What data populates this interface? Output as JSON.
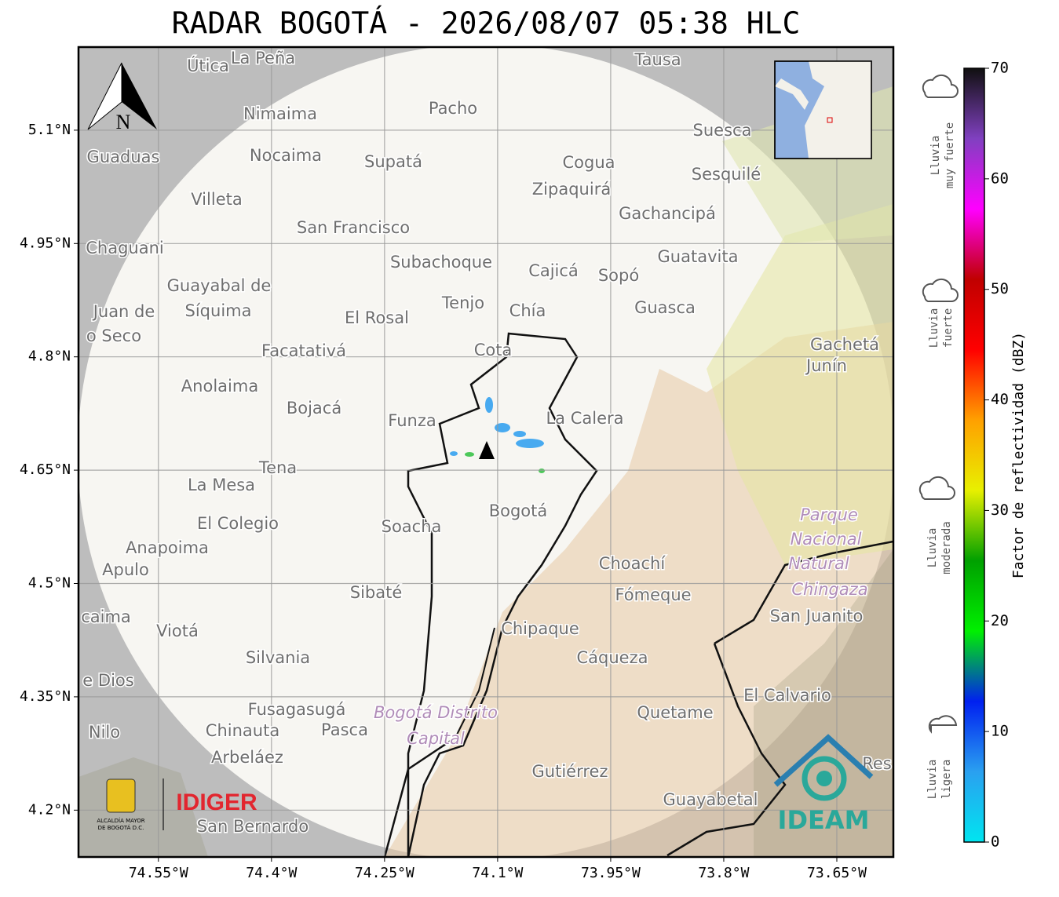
{
  "title": "RADAR BOGOTÁ - 2026/08/07 05:38 HLC",
  "north": "N",
  "map": {
    "xlim": [
      -74.656,
      -73.575
    ],
    "ylim": [
      4.138,
      5.21
    ],
    "xticks": [
      {
        "value": -74.55,
        "label": "74.55°W"
      },
      {
        "value": -74.4,
        "label": "74.4°W"
      },
      {
        "value": -74.25,
        "label": "74.25°W"
      },
      {
        "value": -74.1,
        "label": "74.1°W"
      },
      {
        "value": -73.95,
        "label": "73.95°W"
      },
      {
        "value": -73.8,
        "label": "73.8°W"
      },
      {
        "value": -73.65,
        "label": "73.65°W"
      }
    ],
    "yticks": [
      {
        "value": 5.1,
        "label": "5.1°N"
      },
      {
        "value": 4.95,
        "label": "4.95°N"
      },
      {
        "value": 4.8,
        "label": "4.8°N"
      },
      {
        "value": 4.65,
        "label": "4.65°N"
      },
      {
        "value": 4.5,
        "label": "4.5°N"
      },
      {
        "value": 4.35,
        "label": "4.35°N"
      },
      {
        "value": 4.2,
        "label": "4.2°N"
      }
    ],
    "grid": true
  },
  "places": [
    "Útica",
    "La Peña",
    "Tausa",
    "Pacho",
    "Nimaima",
    "Suesca",
    "Guaduas",
    "Nocaima",
    "Supatá",
    "Cogua",
    "Sesquilé",
    "Zipaquirá",
    "Villeta",
    "Gachancipá",
    "San Francisco",
    "Chaguani",
    "Guatavita",
    "Subachoque",
    "Cajicá",
    "Sopó",
    "Guayabal de",
    "Síquima",
    "Juan de",
    "o Seco",
    "Tenjo",
    "Chía",
    "El Rosal",
    "Guasca",
    "Gachetá",
    "Junín",
    "Facatativá",
    "Cota",
    "Anolaima",
    "Bojacá",
    "Funza",
    "La Calera",
    "Tena",
    "La Mesa",
    "Bogotá",
    "Parque",
    "Nacional",
    "Natural",
    "Chingaza",
    "Soacha",
    "El Colegio",
    "Anapoima",
    "Apulo",
    "Choachí",
    "Fómeque",
    "Sibaté",
    "San Juanito",
    "caima",
    "Viotá",
    "Chipaque",
    "Cáqueza",
    "Silvania",
    "e Dios",
    "El Calvario",
    "Fusagasugá",
    "Bogotá Distrito",
    "Capital",
    "Quetame",
    "Nilo",
    "Chinauta",
    "Pasca",
    "Arbeláez",
    "Gutiérrez",
    "Res",
    "Guayabetal",
    "San Bernardo"
  ],
  "logos": {
    "alcaldia": [
      "ALCALDÍA MAYOR",
      "DE BOGOTÁ D.C."
    ],
    "idiger": "IDIGER",
    "ideam": "IDEAM"
  },
  "colorbar": {
    "lim": [
      0,
      70
    ],
    "ticks": [
      0,
      10,
      20,
      30,
      40,
      50,
      60,
      70
    ],
    "label": "Factor de reflectividad (dBZ)",
    "colors": [
      "#00e5f0",
      "#2aa0f0",
      "#0020f0",
      "#00f000",
      "#00a000",
      "#e8f000",
      "#ffa000",
      "#ff0000",
      "#c00000",
      "#ff00ff",
      "#8040c0",
      "#101010"
    ]
  },
  "rain_levels": [
    [
      "Lluvia",
      "muy fuerte"
    ],
    [
      "Lluvia",
      "fuerte"
    ],
    [
      "Lluvia",
      "moderada"
    ],
    [
      "Lluvia",
      "ligera"
    ]
  ]
}
